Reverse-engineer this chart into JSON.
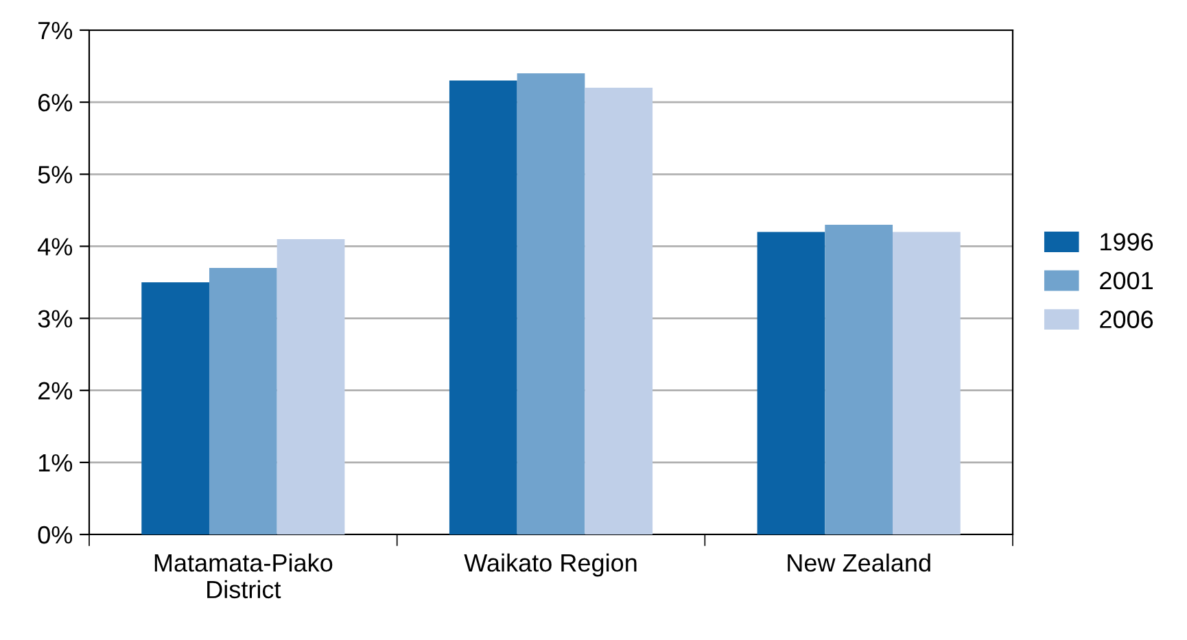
{
  "chart_data": {
    "type": "bar",
    "categories": [
      "Matamata-Piako\nDistrict",
      "Waikato Region",
      "New Zealand"
    ],
    "series": [
      {
        "name": "1996",
        "color": "#0b63a6",
        "values": [
          3.5,
          6.3,
          4.2
        ]
      },
      {
        "name": "2001",
        "color": "#71a3cd",
        "values": [
          3.7,
          6.4,
          4.3
        ]
      },
      {
        "name": "2006",
        "color": "#bfcfe8",
        "values": [
          4.1,
          6.2,
          4.2
        ]
      }
    ],
    "ylim": [
      0,
      7
    ],
    "yticks": [
      {
        "value": 0,
        "label": "0%"
      },
      {
        "value": 1,
        "label": "1%"
      },
      {
        "value": 2,
        "label": "2%"
      },
      {
        "value": 3,
        "label": "3%"
      },
      {
        "value": 4,
        "label": "4%"
      },
      {
        "value": 5,
        "label": "5%"
      },
      {
        "value": 6,
        "label": "6%"
      },
      {
        "value": 7,
        "label": "7%"
      }
    ],
    "grid": "y",
    "legend": "right"
  }
}
